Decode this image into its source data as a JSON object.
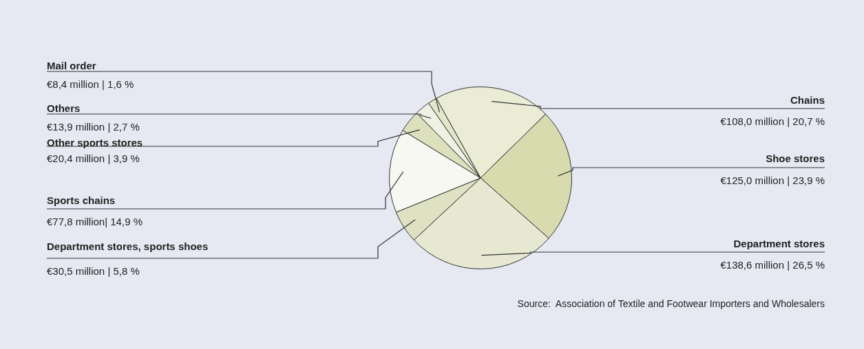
{
  "chart_data": {
    "type": "pie",
    "categories": [
      "Chains",
      "Shoe stores",
      "Department stores",
      "Department stores, sports shoes",
      "Sports chains",
      "Other sports stores",
      "Others",
      "Mail order"
    ],
    "values": [
      20.7,
      23.9,
      26.5,
      5.8,
      14.9,
      3.9,
      2.7,
      1.6
    ],
    "value_labels": [
      "€108,0 million | 20,7 %",
      "€125,0 million | 23,9 %",
      "€138,6 million | 26,5 %",
      "€30,5 million | 5,8 %",
      "€77,8 million| 14,9 %",
      "€20,4 million | 3,9 %",
      "€13,9 million | 2,7 %",
      "€8,4 million | 1,6 %"
    ],
    "colors": [
      "#eaecd6",
      "#d8dbae",
      "#e6e8d2",
      "#dfe2c2",
      "#f7f8f2",
      "#dde0bc",
      "#eff1e2",
      "#e3e6c8"
    ],
    "annotations": [
      "Source:  Association of Textile and Footwear Importers and Wholesalers"
    ],
    "legend": false
  }
}
